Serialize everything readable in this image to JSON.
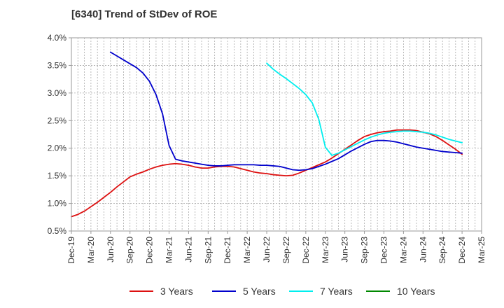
{
  "chart_data": {
    "type": "line",
    "title": "[6340]  Trend of StDev of ROE",
    "x_ticks": [
      "Dec-19",
      "Mar-20",
      "Jun-20",
      "Sep-20",
      "Dec-20",
      "Mar-21",
      "Jun-21",
      "Sep-21",
      "Dec-21",
      "Mar-22",
      "Jun-22",
      "Sep-22",
      "Dec-22",
      "Mar-23",
      "Jun-23",
      "Sep-23",
      "Dec-23",
      "Mar-24",
      "Jun-24",
      "Sep-24",
      "Dec-24",
      "Mar-25"
    ],
    "y_ticks": [
      "0.5%",
      "1.0%",
      "1.5%",
      "2.0%",
      "2.5%",
      "3.0%",
      "3.5%",
      "4.0%"
    ],
    "ylim": [
      0.5,
      4.0
    ],
    "grid": true,
    "legend_placement": "bottom",
    "series": [
      {
        "name": "3 Years",
        "color": "#dd1111",
        "points": [
          [
            "Dec-19",
            0.76
          ],
          [
            "Jan-20",
            0.8
          ],
          [
            "Feb-20",
            0.86
          ],
          [
            "Mar-20",
            0.94
          ],
          [
            "Apr-20",
            1.02
          ],
          [
            "May-20",
            1.11
          ],
          [
            "Jun-20",
            1.2
          ],
          [
            "Jul-20",
            1.3
          ],
          [
            "Aug-20",
            1.39
          ],
          [
            "Sep-20",
            1.48
          ],
          [
            "Oct-20",
            1.53
          ],
          [
            "Nov-20",
            1.57
          ],
          [
            "Dec-20",
            1.62
          ],
          [
            "Jan-21",
            1.66
          ],
          [
            "Feb-21",
            1.69
          ],
          [
            "Mar-21",
            1.71
          ],
          [
            "Apr-21",
            1.72
          ],
          [
            "May-21",
            1.71
          ],
          [
            "Jun-21",
            1.69
          ],
          [
            "Jul-21",
            1.66
          ],
          [
            "Aug-21",
            1.64
          ],
          [
            "Sep-21",
            1.64
          ],
          [
            "Oct-21",
            1.66
          ],
          [
            "Nov-21",
            1.67
          ],
          [
            "Dec-21",
            1.67
          ],
          [
            "Jan-22",
            1.66
          ],
          [
            "Feb-22",
            1.63
          ],
          [
            "Mar-22",
            1.6
          ],
          [
            "Apr-22",
            1.57
          ],
          [
            "May-22",
            1.55
          ],
          [
            "Jun-22",
            1.54
          ],
          [
            "Jul-22",
            1.52
          ],
          [
            "Aug-22",
            1.51
          ],
          [
            "Sep-22",
            1.5
          ],
          [
            "Oct-22",
            1.51
          ],
          [
            "Nov-22",
            1.55
          ],
          [
            "Dec-22",
            1.6
          ],
          [
            "Jan-23",
            1.65
          ],
          [
            "Feb-23",
            1.7
          ],
          [
            "Mar-23",
            1.75
          ],
          [
            "Apr-23",
            1.82
          ],
          [
            "May-23",
            1.9
          ],
          [
            "Jun-23",
            1.98
          ],
          [
            "Jul-23",
            2.06
          ],
          [
            "Aug-23",
            2.14
          ],
          [
            "Sep-23",
            2.21
          ],
          [
            "Oct-23",
            2.25
          ],
          [
            "Nov-23",
            2.28
          ],
          [
            "Dec-23",
            2.3
          ],
          [
            "Jan-24",
            2.31
          ],
          [
            "Feb-24",
            2.33
          ],
          [
            "Mar-24",
            2.33
          ],
          [
            "Apr-24",
            2.33
          ],
          [
            "May-24",
            2.32
          ],
          [
            "Jun-24",
            2.29
          ],
          [
            "Jul-24",
            2.26
          ],
          [
            "Aug-24",
            2.21
          ],
          [
            "Sep-24",
            2.14
          ],
          [
            "Oct-24",
            2.06
          ],
          [
            "Nov-24",
            1.98
          ],
          [
            "Dec-24",
            1.89
          ]
        ]
      },
      {
        "name": "5 Years",
        "color": "#0000cc",
        "points": [
          [
            "Jun-20",
            3.74
          ],
          [
            "Jul-20",
            3.67
          ],
          [
            "Aug-20",
            3.6
          ],
          [
            "Sep-20",
            3.53
          ],
          [
            "Oct-20",
            3.46
          ],
          [
            "Nov-20",
            3.36
          ],
          [
            "Dec-20",
            3.21
          ],
          [
            "Jan-21",
            2.97
          ],
          [
            "Feb-21",
            2.62
          ],
          [
            "Mar-21",
            2.05
          ],
          [
            "Apr-21",
            1.8
          ],
          [
            "May-21",
            1.77
          ],
          [
            "Jun-21",
            1.75
          ],
          [
            "Jul-21",
            1.73
          ],
          [
            "Aug-21",
            1.71
          ],
          [
            "Sep-21",
            1.69
          ],
          [
            "Oct-21",
            1.68
          ],
          [
            "Nov-21",
            1.68
          ],
          [
            "Dec-21",
            1.69
          ],
          [
            "Jan-22",
            1.7
          ],
          [
            "Feb-22",
            1.7
          ],
          [
            "Mar-22",
            1.7
          ],
          [
            "Apr-22",
            1.7
          ],
          [
            "May-22",
            1.69
          ],
          [
            "Jun-22",
            1.69
          ],
          [
            "Jul-22",
            1.68
          ],
          [
            "Aug-22",
            1.67
          ],
          [
            "Sep-22",
            1.64
          ],
          [
            "Oct-22",
            1.61
          ],
          [
            "Nov-22",
            1.6
          ],
          [
            "Dec-22",
            1.61
          ],
          [
            "Jan-23",
            1.63
          ],
          [
            "Feb-23",
            1.67
          ],
          [
            "Mar-23",
            1.71
          ],
          [
            "Apr-23",
            1.76
          ],
          [
            "May-23",
            1.81
          ],
          [
            "Jun-23",
            1.88
          ],
          [
            "Jul-23",
            1.95
          ],
          [
            "Aug-23",
            2.01
          ],
          [
            "Sep-23",
            2.07
          ],
          [
            "Oct-23",
            2.12
          ],
          [
            "Nov-23",
            2.14
          ],
          [
            "Dec-23",
            2.14
          ],
          [
            "Jan-24",
            2.13
          ],
          [
            "Feb-24",
            2.11
          ],
          [
            "Mar-24",
            2.08
          ],
          [
            "Apr-24",
            2.05
          ],
          [
            "May-24",
            2.02
          ],
          [
            "Jun-24",
            2.0
          ],
          [
            "Jul-24",
            1.98
          ],
          [
            "Aug-24",
            1.96
          ],
          [
            "Sep-24",
            1.94
          ],
          [
            "Oct-24",
            1.93
          ],
          [
            "Nov-24",
            1.92
          ],
          [
            "Dec-24",
            1.91
          ]
        ]
      },
      {
        "name": "7 Years",
        "color": "#00eeee",
        "points": [
          [
            "Jun-22",
            3.54
          ],
          [
            "Jul-22",
            3.43
          ],
          [
            "Aug-22",
            3.34
          ],
          [
            "Sep-22",
            3.26
          ],
          [
            "Oct-22",
            3.17
          ],
          [
            "Nov-22",
            3.08
          ],
          [
            "Dec-22",
            2.97
          ],
          [
            "Jan-23",
            2.82
          ],
          [
            "Feb-23",
            2.52
          ],
          [
            "Mar-23",
            2.02
          ],
          [
            "Apr-23",
            1.87
          ],
          [
            "May-23",
            1.91
          ],
          [
            "Jun-23",
            1.97
          ],
          [
            "Jul-23",
            2.03
          ],
          [
            "Aug-23",
            2.09
          ],
          [
            "Sep-23",
            2.15
          ],
          [
            "Oct-23",
            2.2
          ],
          [
            "Nov-23",
            2.24
          ],
          [
            "Dec-23",
            2.27
          ],
          [
            "Jan-24",
            2.29
          ],
          [
            "Feb-24",
            2.3
          ],
          [
            "Mar-24",
            2.31
          ],
          [
            "Apr-24",
            2.31
          ],
          [
            "May-24",
            2.3
          ],
          [
            "Jun-24",
            2.29
          ],
          [
            "Jul-24",
            2.27
          ],
          [
            "Aug-24",
            2.24
          ],
          [
            "Sep-24",
            2.2
          ],
          [
            "Oct-24",
            2.16
          ],
          [
            "Nov-24",
            2.13
          ],
          [
            "Dec-24",
            2.1
          ]
        ]
      },
      {
        "name": "10 Years",
        "color": "#008800",
        "points": []
      }
    ]
  }
}
